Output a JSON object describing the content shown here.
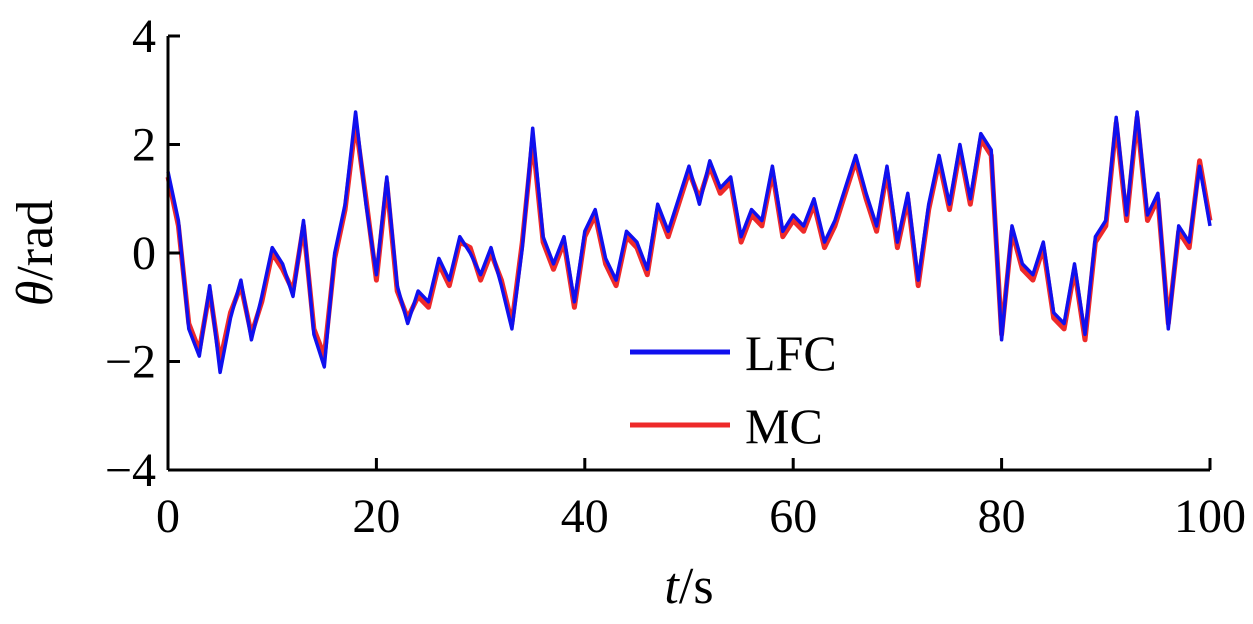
{
  "chart_data": {
    "type": "line",
    "xlabel": {
      "var": "t",
      "sep": "/",
      "unit": "s"
    },
    "ylabel": {
      "var": "θ",
      "sep": "/",
      "unit": "rad"
    },
    "xlim": [
      0,
      100
    ],
    "ylim": [
      -4,
      4
    ],
    "x_ticks": [
      0,
      20,
      40,
      60,
      80,
      100
    ],
    "x_tick_labels": [
      "0",
      "20",
      "40",
      "60",
      "80",
      "100"
    ],
    "y_ticks": [
      -4,
      -2,
      0,
      2,
      4
    ],
    "y_tick_labels": [
      "−4",
      "−2",
      "0",
      "2",
      "4"
    ],
    "grid": false,
    "legend_position": "bottom-center",
    "colors": {
      "LFC": "#1010ee",
      "MC": "#ee2a2a"
    },
    "x": [
      0,
      1,
      2,
      3,
      4,
      5,
      6,
      7,
      8,
      9,
      10,
      11,
      12,
      13,
      14,
      15,
      16,
      17,
      18,
      19,
      20,
      21,
      22,
      23,
      24,
      25,
      26,
      27,
      28,
      29,
      30,
      31,
      32,
      33,
      34,
      35,
      36,
      37,
      38,
      39,
      40,
      41,
      42,
      43,
      44,
      45,
      46,
      47,
      48,
      49,
      50,
      51,
      52,
      53,
      54,
      55,
      56,
      57,
      58,
      59,
      60,
      61,
      62,
      63,
      64,
      65,
      66,
      67,
      68,
      69,
      70,
      71,
      72,
      73,
      74,
      75,
      76,
      77,
      78,
      79,
      80,
      81,
      82,
      83,
      84,
      85,
      86,
      87,
      88,
      89,
      90,
      91,
      92,
      93,
      94,
      95,
      96,
      97,
      98,
      99,
      100
    ],
    "series": [
      {
        "name": "LFC",
        "values": [
          1.5,
          0.6,
          -1.4,
          -1.9,
          -0.6,
          -2.2,
          -1.2,
          -0.5,
          -1.6,
          -0.8,
          0.1,
          -0.2,
          -0.8,
          0.6,
          -1.5,
          -2.1,
          0.0,
          0.9,
          2.6,
          0.9,
          -0.4,
          1.4,
          -0.6,
          -1.3,
          -0.7,
          -0.9,
          -0.1,
          -0.5,
          0.3,
          0.0,
          -0.4,
          0.1,
          -0.6,
          -1.4,
          0.1,
          2.3,
          0.3,
          -0.2,
          0.3,
          -0.9,
          0.4,
          0.8,
          -0.1,
          -0.5,
          0.4,
          0.2,
          -0.3,
          0.9,
          0.4,
          1.0,
          1.6,
          0.9,
          1.7,
          1.2,
          1.4,
          0.3,
          0.8,
          0.6,
          1.6,
          0.4,
          0.7,
          0.5,
          1.0,
          0.2,
          0.6,
          1.2,
          1.8,
          1.1,
          0.5,
          1.6,
          0.2,
          1.1,
          -0.5,
          0.9,
          1.8,
          0.9,
          2.0,
          1.0,
          2.2,
          1.9,
          -1.6,
          0.5,
          -0.2,
          -0.4,
          0.2,
          -1.1,
          -1.3,
          -0.2,
          -1.5,
          0.3,
          0.6,
          2.5,
          0.7,
          2.6,
          0.7,
          1.1,
          -1.4,
          0.5,
          0.2,
          1.6,
          0.5
        ]
      },
      {
        "name": "MC",
        "values": [
          1.4,
          0.5,
          -1.3,
          -1.8,
          -0.7,
          -2.0,
          -1.1,
          -0.6,
          -1.5,
          -0.9,
          0.0,
          -0.3,
          -0.7,
          0.5,
          -1.4,
          -1.9,
          -0.1,
          0.8,
          2.4,
          1.0,
          -0.5,
          1.3,
          -0.7,
          -1.2,
          -0.8,
          -1.0,
          -0.2,
          -0.6,
          0.2,
          0.1,
          -0.5,
          0.0,
          -0.5,
          -1.3,
          0.2,
          2.1,
          0.2,
          -0.3,
          0.2,
          -1.0,
          0.3,
          0.7,
          -0.2,
          -0.6,
          0.3,
          0.1,
          -0.4,
          0.8,
          0.3,
          0.9,
          1.5,
          1.0,
          1.6,
          1.1,
          1.3,
          0.2,
          0.7,
          0.5,
          1.5,
          0.3,
          0.6,
          0.4,
          0.9,
          0.1,
          0.5,
          1.1,
          1.7,
          1.0,
          0.4,
          1.5,
          0.1,
          1.0,
          -0.6,
          0.8,
          1.7,
          0.8,
          1.9,
          0.9,
          2.1,
          1.8,
          -1.5,
          0.4,
          -0.3,
          -0.5,
          0.1,
          -1.2,
          -1.4,
          -0.3,
          -1.6,
          0.2,
          0.5,
          2.4,
          0.6,
          2.5,
          0.6,
          1.0,
          -1.3,
          0.4,
          0.1,
          1.7,
          0.6
        ]
      }
    ]
  }
}
